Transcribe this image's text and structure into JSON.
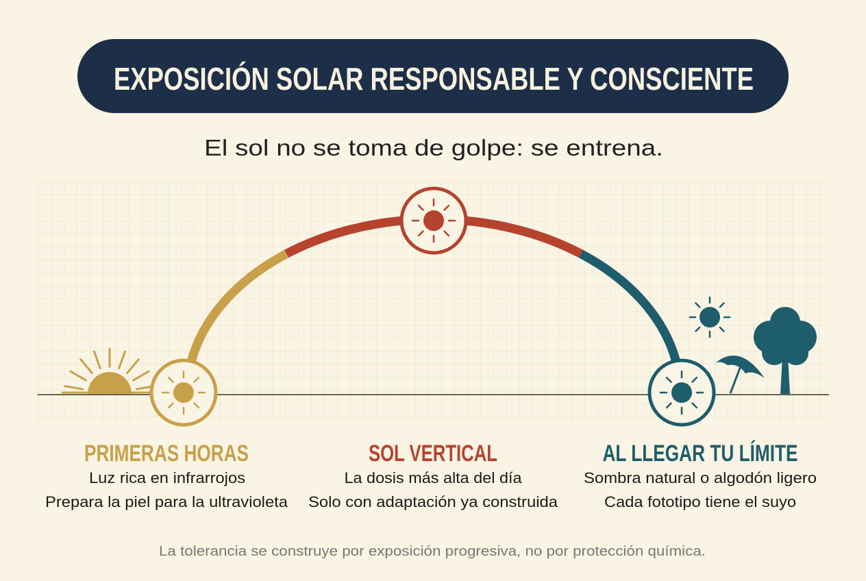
{
  "header": {
    "title": "EXPOSICIÓN SOLAR RESPONSABLE Y CONSCIENTE",
    "subtitle": "El sol no se toma de golpe: se entrena."
  },
  "stages": [
    {
      "heading": "PRIMERAS HORAS",
      "lines": [
        "Luz rica en infrarrojos",
        "Prepara la piel para la ultravioleta"
      ]
    },
    {
      "heading": "SOL VERTICAL",
      "lines": [
        "La dosis más alta del día",
        "Solo con adaptación ya construida"
      ]
    },
    {
      "heading": "AL LLEGAR TU LÍMITE",
      "lines": [
        "Sombra natural o algodón ligero",
        "Cada fototipo tiene el suyo"
      ]
    }
  ],
  "footer": "La tolerancia se construye por exposición progresiva, no por protección química."
}
